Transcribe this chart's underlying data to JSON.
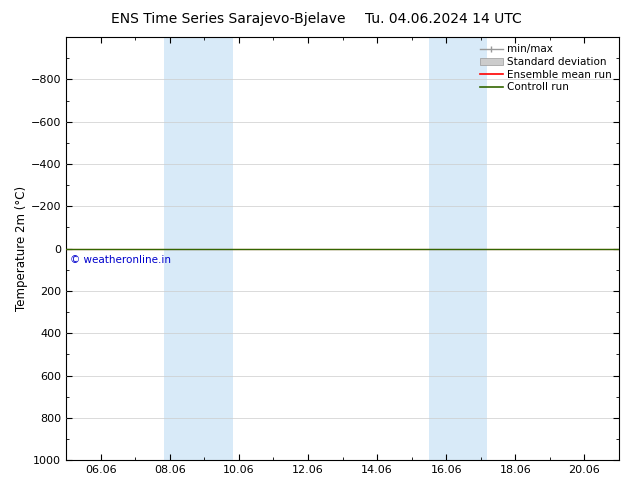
{
  "title": "ENS Time Series Sarajevo-Bjelave",
  "title_right": "Tu. 04.06.2024 14 UTC",
  "ylabel": "Temperature 2m (°C)",
  "ylim": [
    -1000,
    1000
  ],
  "yticks": [
    -800,
    -600,
    -400,
    -200,
    0,
    200,
    400,
    600,
    800,
    1000
  ],
  "xtick_positions": [
    6,
    8,
    10,
    12,
    14,
    16,
    18,
    20
  ],
  "xtick_labels": [
    "06.06",
    "08.06",
    "10.06",
    "12.06",
    "14.06",
    "16.06",
    "18.06",
    "20.06"
  ],
  "xlim": [
    5.0,
    21.0
  ],
  "shaded_bands": [
    {
      "xstart": 7.83,
      "xend": 9.83
    },
    {
      "xstart": 15.5,
      "xend": 17.17
    }
  ],
  "shaded_color": "#d8eaf8",
  "watermark": "© weatheronline.in",
  "watermark_color": "#0000cc",
  "bg_color": "#ffffff",
  "control_run_color": "#336600",
  "ensemble_mean_color": "#ff0000",
  "grid_color": "#cccccc",
  "tick_fontsize": 8,
  "title_fontsize": 10,
  "ylabel_fontsize": 8.5,
  "legend_fontsize": 7.5,
  "minmax_color": "#999999",
  "stddev_color": "#cccccc",
  "legend_items": [
    {
      "label": "min/max"
    },
    {
      "label": "Standard deviation"
    },
    {
      "label": "Ensemble mean run"
    },
    {
      "label": "Controll run"
    }
  ]
}
